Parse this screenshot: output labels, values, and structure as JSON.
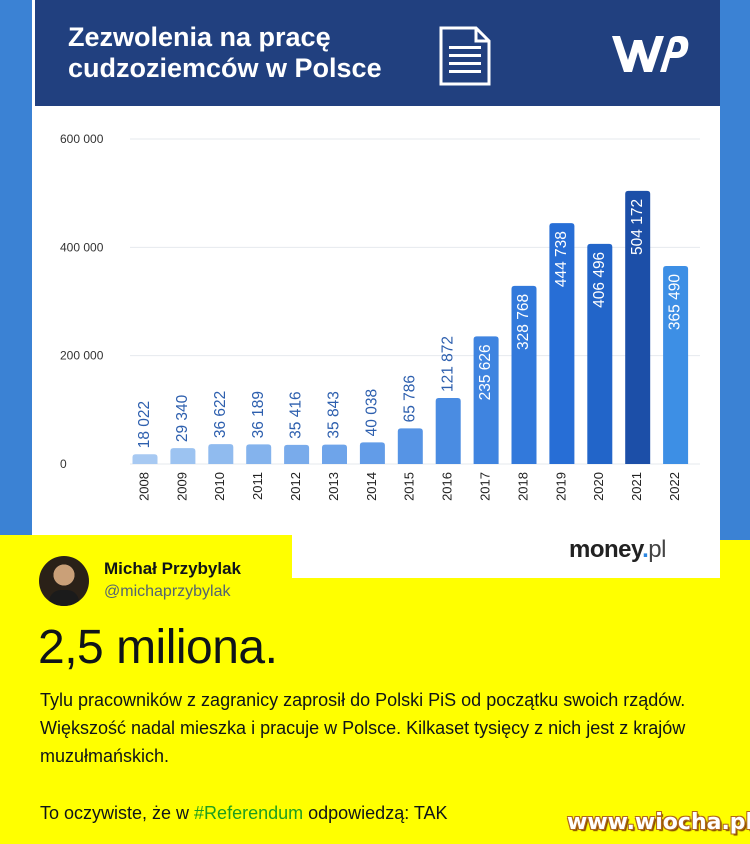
{
  "header": {
    "title_line1": "Zezwolenia na pracę",
    "title_line2": "cudzoziemców w Polsce",
    "logo": "WP"
  },
  "source": {
    "brand": "money",
    "dot": ".",
    "tld": "pl"
  },
  "chart_data": {
    "type": "bar",
    "title": "Zezwolenia na pracę cudzoziemców w Polsce",
    "categories": [
      "2008",
      "2009",
      "2010",
      "2011",
      "2012",
      "2013",
      "2014",
      "2015",
      "2016",
      "2017",
      "2018",
      "2019",
      "2020",
      "2021",
      "2022"
    ],
    "values": [
      18022,
      29340,
      36622,
      36189,
      35416,
      35843,
      40038,
      65786,
      121872,
      235626,
      328768,
      444738,
      406496,
      504172,
      365490
    ],
    "labels": [
      "18 022",
      "29 340",
      "36 622",
      "36 189",
      "35 416",
      "35 843",
      "40 038",
      "65 786",
      "121 872",
      "235 626",
      "328 768",
      "444 738",
      "406 496",
      "504 172",
      "365 490"
    ],
    "yticks": [
      0,
      200000,
      400000,
      600000
    ],
    "ytick_labels": [
      "0",
      "200 000",
      "400 000",
      "600 000"
    ],
    "ylim": [
      0,
      600000
    ],
    "colors": [
      "#a7c9f2",
      "#9cc3f1",
      "#90bbef",
      "#84b3ed",
      "#79abeb",
      "#6ea4ea",
      "#629ce8",
      "#5694e5",
      "#4a8ce2",
      "#3f84e0",
      "#3279db",
      "#276ed6",
      "#2265c9",
      "#1c4fa8",
      "#3d8fe5"
    ],
    "xlabel": "",
    "ylabel": "",
    "grid": true
  },
  "tweet": {
    "author_name": "Michał Przybylak",
    "author_handle": "@michaprzybylak",
    "headline": "2,5 miliona.",
    "paragraph": "Tylu pracowników z zagranicy zaprosił do Polski PiS od początku swoich rządów. Większość nadal mieszka i pracuje w Polsce. Kilkaset tysięcy z nich jest z krajów muzułmańskich.",
    "ref_prefix": "To oczywiste, że w ",
    "hashtag": "#Referendum",
    "ref_suffix": " odpowiedzą: TAK"
  },
  "watermark": "www.wiocha.pl"
}
